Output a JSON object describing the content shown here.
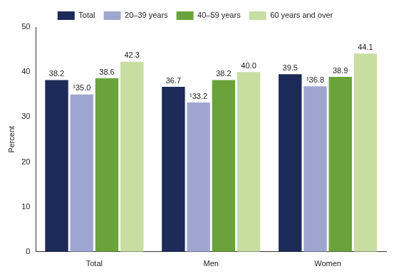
{
  "chart_data": {
    "type": "bar",
    "categories": [
      "Total",
      "Men",
      "Women"
    ],
    "series": [
      {
        "name": "Total",
        "color": "#1c2b5a",
        "values": [
          38.2,
          36.7,
          39.5
        ],
        "value_labels": [
          "38.2",
          "36.7",
          "39.5"
        ]
      },
      {
        "name": "20–39 years",
        "color": "#9ea6d0",
        "values": [
          35.0,
          33.2,
          36.8
        ],
        "value_labels": [
          "¹35.0",
          "¹33.2",
          "¹36.8"
        ]
      },
      {
        "name": "40–59 years",
        "color": "#6aa33a",
        "values": [
          38.6,
          38.2,
          38.9
        ],
        "value_labels": [
          "38.6",
          "38.2",
          "38.9"
        ]
      },
      {
        "name": "60 years and over",
        "color": "#c7dea0",
        "values": [
          42.3,
          40.0,
          44.1
        ],
        "value_labels": [
          "42.3",
          "40.0",
          "44.1"
        ]
      }
    ],
    "y_label": "Percent",
    "ylim": [
      0,
      50
    ],
    "yticks": [
      0,
      10,
      20,
      30,
      40,
      50
    ],
    "grid": false,
    "legend": "top",
    "data_labels": true
  }
}
